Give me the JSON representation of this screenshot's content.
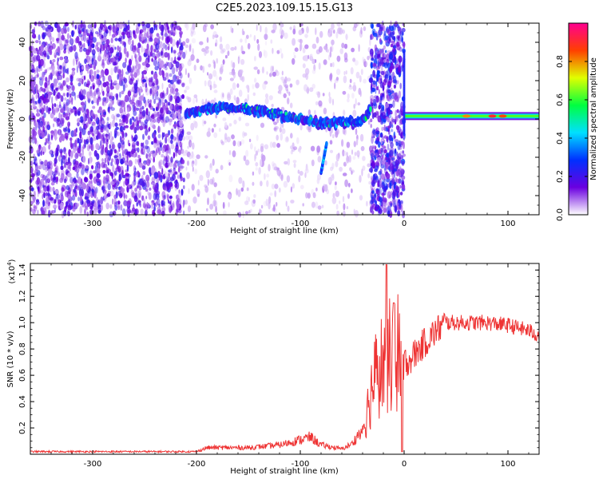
{
  "title": "C2E5.2023.109.15.15.G13",
  "chart_data": [
    {
      "type": "heatmap",
      "xlabel": "Height of straight line (km)",
      "ylabel": "Frequency (Hz)",
      "xlim": [
        -360,
        130
      ],
      "ylim": [
        -50,
        50
      ],
      "x_ticks": [
        -300,
        -200,
        -100,
        0,
        100
      ],
      "y_ticks": [
        -40,
        -20,
        0,
        20,
        40
      ],
      "colorbar": {
        "label": "Normalized spectral amplitude",
        "range": [
          0.0,
          1.0
        ],
        "ticks": [
          0.0,
          0.2,
          0.4,
          0.6,
          0.8
        ],
        "stops": [
          "#ffffff",
          "#6a00e0",
          "#0030ff",
          "#00e0ff",
          "#00ff40",
          "#e0ff00",
          "#ff4000",
          "#ff0090"
        ]
      },
      "features": [
        {
          "region": "broadband noise",
          "x_range": [
            -360,
            -212
          ],
          "freq_range": [
            -50,
            50
          ],
          "level": 0.15
        },
        {
          "region": "sparse noise",
          "x_range": [
            -212,
            -32
          ],
          "freq_range": [
            -50,
            50
          ],
          "level": 0.05
        },
        {
          "region": "signal track",
          "x": [
            -210,
            -180,
            -150,
            -120,
            -95,
            -80,
            -65,
            -50,
            -40,
            -33
          ],
          "freq": [
            3,
            6,
            5,
            2,
            0,
            -3,
            -2,
            -2,
            0,
            4
          ],
          "level": 0.45
        },
        {
          "region": "noise band",
          "x_range": [
            -32,
            0
          ],
          "freq_range": [
            -50,
            50
          ],
          "level": 0.2
        },
        {
          "region": "direct line",
          "x_range": [
            0,
            130
          ],
          "freq": 1.5,
          "level": 0.7
        }
      ]
    },
    {
      "type": "line",
      "xlabel": "Height of straight line (km)",
      "ylabel": "SNR (10 * v/v)",
      "y_multiplier": "(x10",
      "y_multiplier_exp": "4",
      "y_multiplier_close": ")",
      "xlim": [
        -360,
        130
      ],
      "ylim": [
        0,
        1.45
      ],
      "x_ticks": [
        -300,
        -200,
        -100,
        0,
        100
      ],
      "y_ticks": [
        0.2,
        0.4,
        0.6,
        0.8,
        1.0,
        1.2,
        1.4
      ],
      "color": "#ee3333",
      "envelope": {
        "x": [
          -360,
          -250,
          -200,
          -190,
          -150,
          -120,
          -100,
          -90,
          -80,
          -60,
          -50,
          -40,
          -35,
          -30,
          -25,
          -20,
          -15,
          -10,
          -5,
          0,
          5,
          10,
          20,
          30,
          40,
          60,
          80,
          100,
          120,
          130
        ],
        "y": [
          0.02,
          0.02,
          0.02,
          0.05,
          0.05,
          0.07,
          0.11,
          0.13,
          0.07,
          0.04,
          0.08,
          0.2,
          0.35,
          0.55,
          0.65,
          0.7,
          0.75,
          0.72,
          0.78,
          0.7,
          0.72,
          0.76,
          0.85,
          0.93,
          1.0,
          1.0,
          1.0,
          0.98,
          0.94,
          0.9
        ]
      }
    }
  ]
}
